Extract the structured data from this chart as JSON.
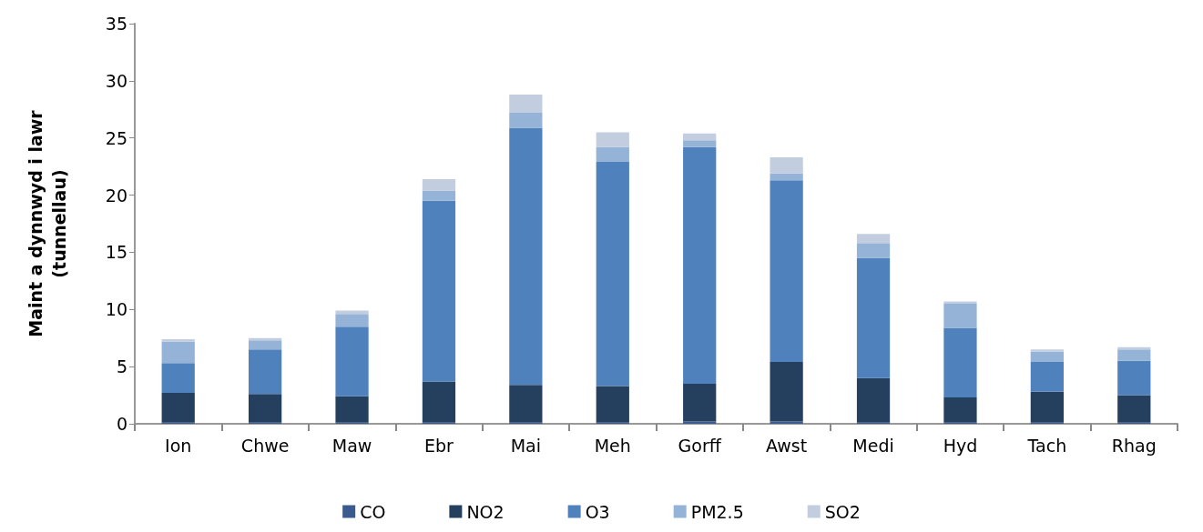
{
  "chart_data": {
    "type": "bar",
    "stacked": true,
    "ylabel": "Maint a dynnwyd i lawr\n(tunnellau)",
    "categories": [
      "Ion",
      "Chwe",
      "Maw",
      "Ebr",
      "Mai",
      "Meh",
      "Gorff",
      "Awst",
      "Medi",
      "Hyd",
      "Tach",
      "Rhag"
    ],
    "series": [
      {
        "name": "CO",
        "color": "#3b5b8f",
        "values": [
          0.1,
          0.1,
          0.1,
          0.1,
          0.1,
          0.1,
          0.2,
          0.2,
          0.1,
          0.1,
          0.1,
          0.1
        ]
      },
      {
        "name": "NO2",
        "color": "#253f5f",
        "values": [
          2.6,
          2.5,
          2.3,
          3.6,
          3.3,
          3.2,
          3.3,
          5.2,
          3.9,
          2.2,
          2.7,
          2.4
        ]
      },
      {
        "name": "O3",
        "color": "#4f81bd",
        "values": [
          2.6,
          3.9,
          6.1,
          15.8,
          22.5,
          19.6,
          20.7,
          15.9,
          10.5,
          6.1,
          2.6,
          3.0
        ]
      },
      {
        "name": "PM2.5",
        "color": "#95b3d7",
        "values": [
          1.9,
          0.8,
          1.1,
          0.9,
          1.3,
          1.3,
          0.6,
          0.6,
          1.3,
          2.1,
          0.9,
          1.0
        ]
      },
      {
        "name": "SO2",
        "color": "#c3cde0",
        "values": [
          0.2,
          0.2,
          0.3,
          1.0,
          1.6,
          1.3,
          0.6,
          1.4,
          0.8,
          0.2,
          0.2,
          0.2
        ]
      }
    ],
    "ylim": [
      0,
      35
    ],
    "yticks": [
      0,
      5,
      10,
      15,
      20,
      25,
      30,
      35
    ],
    "grid": false,
    "legend": "bottom"
  }
}
